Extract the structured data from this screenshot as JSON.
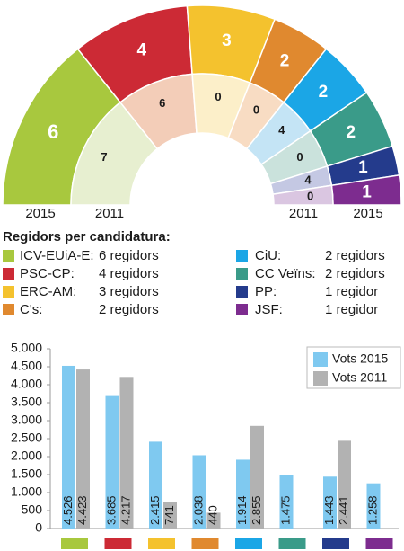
{
  "chart_data": [
    {
      "type": "parliament",
      "title": "Regidors per candidatura:",
      "categories": [
        "ICV-EUiA-E:",
        "PSC-CP:",
        "ERC-AM:",
        "C's:",
        "CiU:",
        "CC Veïns:",
        "PP:",
        "JSF:"
      ],
      "colors": [
        "#a8c83e",
        "#cc2a35",
        "#f4c22e",
        "#e0892f",
        "#1ba6e6",
        "#3a9b89",
        "#243b8c",
        "#7d2c8f"
      ],
      "inner_colors": [
        "#e7efd0",
        "#f3cdb8",
        "#fcefc9",
        "#f8dcc3",
        "#c4e4f5",
        "#cae2dc",
        "#c4c8e3",
        "#dac6e1"
      ],
      "legend_labels": [
        "6 regidors",
        "4 regidors",
        "3 regidors",
        "2 regidors",
        "2 regidors",
        "2 regidors",
        "1 regidor",
        "1 regidor"
      ],
      "series": [
        {
          "name": "2015",
          "values": [
            6,
            4,
            3,
            2,
            2,
            2,
            1,
            1
          ]
        },
        {
          "name": "2011",
          "values": [
            7,
            6,
            0,
            0,
            4,
            0,
            4,
            0
          ]
        }
      ]
    },
    {
      "type": "bar",
      "categories": [
        null,
        null,
        null,
        null,
        null,
        null,
        null,
        null
      ],
      "category_colors": [
        "#a8c83e",
        "#cc2a35",
        "#f4c22e",
        "#e0892f",
        "#1ba6e6",
        "#3a9b89",
        "#243b8c",
        "#7d2c8f"
      ],
      "series": [
        {
          "name": "Vots 2015",
          "color": "#7fc9f0",
          "values": [
            4526,
            3685,
            2415,
            2038,
            1914,
            1475,
            1443,
            1258
          ],
          "value_labels": [
            "4.526",
            "3.685",
            "2.415",
            "2.038",
            "1.914",
            "1.475",
            "1.443",
            "1.258"
          ]
        },
        {
          "name": "Vots 2011",
          "color": "#b2b2b2",
          "values": [
            4423,
            4217,
            741,
            440,
            2855,
            null,
            2441,
            null
          ],
          "value_labels": [
            "4.423",
            "4.217",
            "741",
            "440",
            "2.855",
            null,
            "2.441",
            null
          ]
        }
      ],
      "ylim": [
        0,
        5000
      ],
      "yticks": [
        0,
        500,
        {
          "value": 1000,
          "label": "1.000"
        },
        {
          "value": 1500,
          "label": "1.500"
        },
        {
          "value": 2000,
          "label": "2.000"
        },
        {
          "value": 2500,
          "label": "2.500"
        },
        {
          "value": 3000,
          "label": "3.000"
        },
        {
          "value": 3500,
          "label": "3.500"
        },
        {
          "value": 4000,
          "label": "4.000"
        },
        {
          "value": 4500,
          "label": "4.500"
        },
        {
          "value": 5000,
          "label": "5.000"
        }
      ],
      "legend": "top-right"
    }
  ]
}
